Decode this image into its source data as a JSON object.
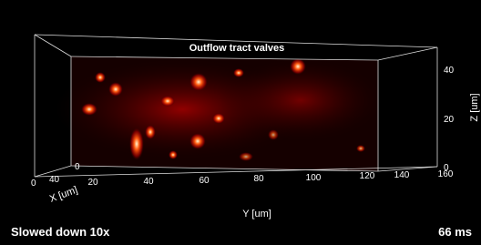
{
  "title": "Outflow tract valves",
  "y_axis": {
    "label": "Y [um]",
    "ticks": [
      0,
      20,
      40,
      60,
      80,
      100,
      120,
      140,
      160
    ]
  },
  "z_axis": {
    "label": "Z [um]",
    "ticks": [
      0,
      20,
      40
    ]
  },
  "x_axis": {
    "label": "X [um]",
    "ticks": [
      0,
      40
    ]
  },
  "footer": {
    "left": "Slowed down 10x",
    "right": "66 ms"
  }
}
